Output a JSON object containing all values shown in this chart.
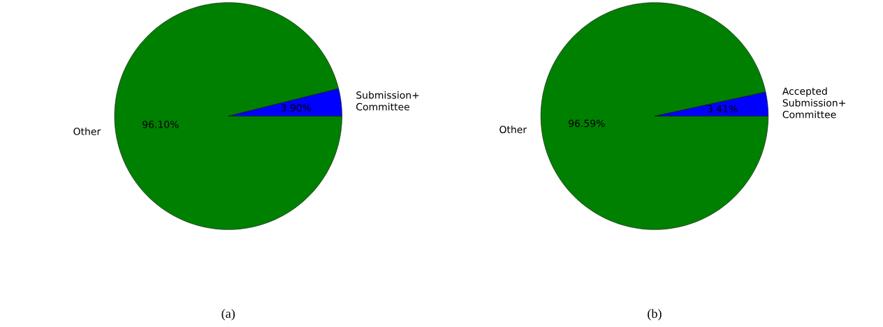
{
  "chart_data": [
    {
      "type": "pie",
      "categories": [
        "Submission+ Committee",
        "Other"
      ],
      "values": [
        3.9,
        96.1
      ],
      "colors": [
        "#0000ff",
        "#008000"
      ],
      "value_labels": [
        "3.90%",
        "96.10%"
      ],
      "annotations": [
        "(a)"
      ]
    },
    {
      "type": "pie",
      "categories": [
        "Accepted Submission+ Committee",
        "Other"
      ],
      "values": [
        3.41,
        96.59
      ],
      "colors": [
        "#0000ff",
        "#008000"
      ],
      "value_labels": [
        "3.41%",
        "96.59%"
      ],
      "annotations": [
        "(b)"
      ]
    }
  ]
}
